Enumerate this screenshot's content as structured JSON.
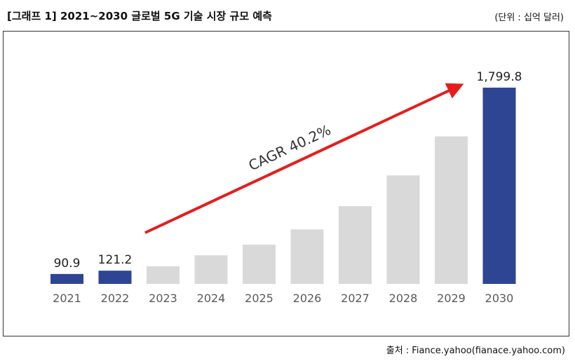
{
  "header": {
    "title": "[그래프 1] 2021~2030 글로벌 5G 기술 시장 규모 예측",
    "unit": "(단위 : 십억 달러)"
  },
  "footer": {
    "source": "출처 : Fiance.yahoo(fianace.yahoo.com)"
  },
  "colors": {
    "highlight": "#2d4592",
    "muted": "#d9d9d9",
    "arrow": "#e41e1e",
    "axis_text": "#595959"
  },
  "chart_data": {
    "type": "bar",
    "categories": [
      "2021",
      "2022",
      "2023",
      "2024",
      "2025",
      "2026",
      "2027",
      "2028",
      "2029",
      "2030"
    ],
    "values": [
      90.9,
      121.2,
      162,
      262,
      360,
      500,
      713,
      995,
      1353,
      1799.8
    ],
    "highlighted": [
      true,
      true,
      false,
      false,
      false,
      false,
      false,
      false,
      false,
      true
    ],
    "data_labels": [
      "90.9",
      "121.2",
      "",
      "",
      "",
      "",
      "",
      "",
      "",
      "1,799.8"
    ],
    "annotation": "CAGR 40.2%",
    "title": "[그래프 1] 2021~2030 글로벌 5G 기술 시장 규모 예측",
    "ylim": [
      0,
      1800
    ],
    "grid": false,
    "y_axis_shown": false
  }
}
